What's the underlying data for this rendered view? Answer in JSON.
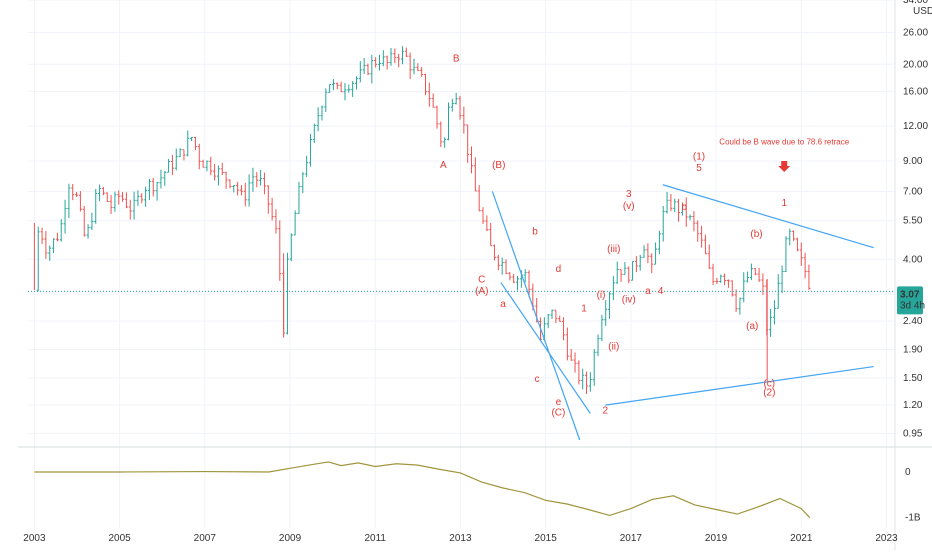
{
  "chart_data": {
    "type": "ohlc",
    "currency": "USD",
    "price_axis_ticks": [
      "34.00",
      "26.00",
      "20.00",
      "16.00",
      "12.00",
      "9.00",
      "7.00",
      "5.50",
      "4.00",
      "3.00",
      "2.40",
      "1.90",
      "1.50",
      "1.20",
      "0.95"
    ],
    "price_scale": "log",
    "ylim": [
      0.9,
      34
    ],
    "volume_axis_ticks": [
      "0",
      "-1B"
    ],
    "x_ticks": [
      "2003",
      "2005",
      "2007",
      "2009",
      "2011",
      "2013",
      "2015",
      "2017",
      "2019",
      "2021",
      "2023"
    ],
    "xlim": [
      2002.85,
      2023.2
    ],
    "last_price": {
      "value": "3.07",
      "countdown": "3d 4h",
      "y": 3.07
    },
    "series": [
      {
        "kind": "price",
        "points": [
          [
            2003.0,
            3.1
          ],
          [
            2003.1,
            5.3
          ],
          [
            2003.3,
            4.3
          ],
          [
            2003.6,
            5.0
          ],
          [
            2003.8,
            7.6
          ],
          [
            2004.0,
            6.6
          ],
          [
            2004.2,
            4.6
          ],
          [
            2004.5,
            7.2
          ],
          [
            2004.8,
            6.2
          ],
          [
            2005.0,
            6.8
          ],
          [
            2005.3,
            6.0
          ],
          [
            2005.6,
            7.3
          ],
          [
            2005.9,
            7.6
          ],
          [
            2006.1,
            8.4
          ],
          [
            2006.4,
            9.4
          ],
          [
            2006.7,
            11.0
          ],
          [
            2006.9,
            9.0
          ],
          [
            2007.1,
            8.8
          ],
          [
            2007.4,
            8.0
          ],
          [
            2007.7,
            7.5
          ],
          [
            2007.9,
            6.5
          ],
          [
            2008.1,
            8.0
          ],
          [
            2008.3,
            7.6
          ],
          [
            2008.5,
            6.3
          ],
          [
            2008.7,
            4.8
          ],
          [
            2008.85,
            2.3
          ],
          [
            2008.95,
            4.0
          ],
          [
            2009.1,
            5.6
          ],
          [
            2009.3,
            8.2
          ],
          [
            2009.5,
            10.5
          ],
          [
            2009.7,
            14.0
          ],
          [
            2009.9,
            17.5
          ],
          [
            2010.1,
            16.0
          ],
          [
            2010.3,
            17.0
          ],
          [
            2010.5,
            17.5
          ],
          [
            2010.7,
            18.5
          ],
          [
            2010.9,
            20.0
          ],
          [
            2011.1,
            21.0
          ],
          [
            2011.3,
            20.0
          ],
          [
            2011.5,
            22.0
          ],
          [
            2011.7,
            21.5
          ],
          [
            2011.9,
            19.0
          ],
          [
            2012.1,
            17.5
          ],
          [
            2012.3,
            15.0
          ],
          [
            2012.5,
            11.5
          ],
          [
            2012.6,
            9.8
          ],
          [
            2012.75,
            15.0
          ],
          [
            2012.9,
            16.0
          ],
          [
            2013.1,
            11.5
          ],
          [
            2013.3,
            7.5
          ],
          [
            2013.5,
            5.6
          ],
          [
            2013.7,
            4.4
          ],
          [
            2013.9,
            4.0
          ],
          [
            2014.1,
            3.7
          ],
          [
            2014.3,
            3.4
          ],
          [
            2014.5,
            3.6
          ],
          [
            2014.7,
            2.8
          ],
          [
            2014.9,
            2.0
          ],
          [
            2015.0,
            2.4
          ],
          [
            2015.2,
            2.6
          ],
          [
            2015.4,
            2.2
          ],
          [
            2015.6,
            1.7
          ],
          [
            2015.8,
            1.5
          ],
          [
            2016.0,
            1.4
          ],
          [
            2016.1,
            1.7
          ],
          [
            2016.3,
            2.5
          ],
          [
            2016.5,
            3.1
          ],
          [
            2016.7,
            3.8
          ],
          [
            2016.9,
            3.5
          ],
          [
            2017.1,
            3.8
          ],
          [
            2017.3,
            4.6
          ],
          [
            2017.5,
            3.6
          ],
          [
            2017.7,
            5.5
          ],
          [
            2017.9,
            6.4
          ],
          [
            2018.1,
            6.1
          ],
          [
            2018.3,
            5.8
          ],
          [
            2018.5,
            5.2
          ],
          [
            2018.7,
            4.4
          ],
          [
            2018.9,
            3.3
          ],
          [
            2019.1,
            3.6
          ],
          [
            2019.3,
            3.4
          ],
          [
            2019.5,
            2.7
          ],
          [
            2019.7,
            3.4
          ],
          [
            2019.9,
            3.6
          ],
          [
            2020.1,
            3.1
          ],
          [
            2020.2,
            2.2
          ],
          [
            2020.35,
            2.6
          ],
          [
            2020.55,
            3.8
          ],
          [
            2020.7,
            5.0
          ],
          [
            2020.9,
            4.2
          ],
          [
            2021.1,
            3.6
          ],
          [
            2021.25,
            3.07
          ]
        ]
      },
      {
        "kind": "volume",
        "points": [
          [
            2003.0,
            0.0
          ],
          [
            2005.0,
            0.0
          ],
          [
            2007.0,
            0.01
          ],
          [
            2008.5,
            0.0
          ],
          [
            2009.0,
            0.08
          ],
          [
            2009.5,
            0.16
          ],
          [
            2009.9,
            0.22
          ],
          [
            2010.2,
            0.14
          ],
          [
            2010.6,
            0.2
          ],
          [
            2011.0,
            0.12
          ],
          [
            2011.5,
            0.18
          ],
          [
            2012.0,
            0.15
          ],
          [
            2012.5,
            0.06
          ],
          [
            2013.0,
            -0.02
          ],
          [
            2013.5,
            -0.22
          ],
          [
            2014.0,
            -0.35
          ],
          [
            2014.5,
            -0.45
          ],
          [
            2015.0,
            -0.62
          ],
          [
            2015.5,
            -0.7
          ],
          [
            2016.0,
            -0.82
          ],
          [
            2016.5,
            -0.95
          ],
          [
            2017.0,
            -0.8
          ],
          [
            2017.5,
            -0.6
          ],
          [
            2018.0,
            -0.52
          ],
          [
            2018.5,
            -0.72
          ],
          [
            2019.0,
            -0.82
          ],
          [
            2019.5,
            -0.92
          ],
          [
            2020.0,
            -0.76
          ],
          [
            2020.5,
            -0.58
          ],
          [
            2021.0,
            -0.8
          ],
          [
            2021.2,
            -1.0
          ]
        ]
      }
    ]
  },
  "annotations": {
    "wave_labels": [
      {
        "text": "A",
        "x": 2012.6,
        "y": 8.5
      },
      {
        "text": "B",
        "x": 2012.9,
        "y": 20.5
      },
      {
        "text": "(B)",
        "x": 2013.9,
        "y": 8.5
      },
      {
        "text": "C",
        "x": 2013.5,
        "y": 3.3
      },
      {
        "text": "(A)",
        "x": 2013.5,
        "y": 3.0
      },
      {
        "text": "a",
        "x": 2014.0,
        "y": 2.7
      },
      {
        "text": "b",
        "x": 2014.75,
        "y": 4.9
      },
      {
        "text": "c",
        "x": 2014.8,
        "y": 1.45
      },
      {
        "text": "d",
        "x": 2015.3,
        "y": 3.6
      },
      {
        "text": "e",
        "x": 2015.3,
        "y": 1.2
      },
      {
        "text": "(C)",
        "x": 2015.3,
        "y": 1.1
      },
      {
        "text": "1",
        "x": 2015.9,
        "y": 2.6
      },
      {
        "text": "2",
        "x": 2016.4,
        "y": 1.12
      },
      {
        "text": "(i)",
        "x": 2016.3,
        "y": 2.9
      },
      {
        "text": "(ii)",
        "x": 2016.6,
        "y": 1.9
      },
      {
        "text": "(iii)",
        "x": 2016.6,
        "y": 4.25
      },
      {
        "text": "(iv)",
        "x": 2016.95,
        "y": 2.8
      },
      {
        "text": "3",
        "x": 2016.95,
        "y": 6.7
      },
      {
        "text": "(v)",
        "x": 2016.95,
        "y": 6.05
      },
      {
        "text": "a",
        "x": 2017.4,
        "y": 3.0
      },
      {
        "text": "4",
        "x": 2017.7,
        "y": 3.0
      },
      {
        "text": "b",
        "x": 2018.25,
        "y": 6.0
      },
      {
        "text": "(1)",
        "x": 2018.6,
        "y": 9.1
      },
      {
        "text": "5",
        "x": 2018.6,
        "y": 8.3
      },
      {
        "text": "(b)",
        "x": 2019.95,
        "y": 4.8
      },
      {
        "text": "(a)",
        "x": 2019.85,
        "y": 2.25
      },
      {
        "text": "1",
        "x": 2020.6,
        "y": 6.2
      },
      {
        "text": "(c)",
        "x": 2020.25,
        "y": 1.4
      },
      {
        "text": "(2)",
        "x": 2020.25,
        "y": 1.3
      }
    ],
    "note": {
      "text": "Could be B wave due to 78.6 retrace",
      "x": 2020.6,
      "y": 10.3
    },
    "arrow": {
      "x": 2020.6,
      "y": 8.5
    }
  },
  "colors": {
    "candle_up": "#26a69a",
    "candle_down": "#ef5350",
    "trendline": "#42a5f5",
    "wave_label": "#e53935",
    "volume_line": "#a0953d",
    "price_line": "#26a69a",
    "last_price_bg": "#26a69a"
  }
}
